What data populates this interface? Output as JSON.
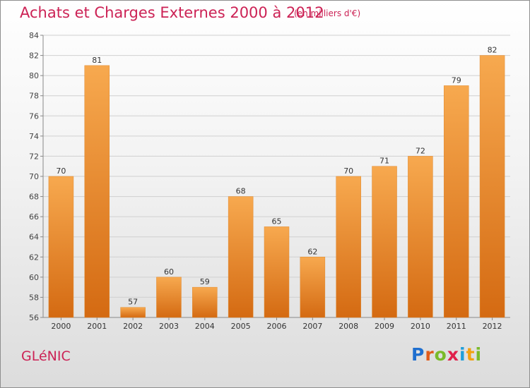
{
  "header": {
    "title": "Achats et Charges Externes 2000 à 2012",
    "unit": "(en milliers d'€)"
  },
  "footer": {
    "place": "GLéNIC",
    "brand_letters": [
      "P",
      "r",
      "o",
      "x",
      "i",
      "t",
      "i"
    ],
    "brand_colors": [
      "#1f6fcf",
      "#e05b1a",
      "#7aba2a",
      "#e0204a",
      "#1f9fd9",
      "#f2a20f",
      "#7aba2a"
    ]
  },
  "colors": {
    "bar_top": "#f7a94f",
    "bar_bottom": "#d46a12",
    "title": "#cc2255"
  },
  "chart_data": {
    "type": "bar",
    "categories": [
      "2000",
      "2001",
      "2002",
      "2003",
      "2004",
      "2005",
      "2006",
      "2007",
      "2008",
      "2009",
      "2010",
      "2011",
      "2012"
    ],
    "values": [
      70,
      81,
      57,
      60,
      59,
      68,
      65,
      62,
      70,
      71,
      72,
      79,
      82
    ],
    "ylim": [
      56,
      84
    ],
    "yticks": [
      56,
      58,
      60,
      62,
      64,
      66,
      68,
      70,
      72,
      74,
      76,
      78,
      80,
      82,
      84
    ],
    "grid": true
  }
}
